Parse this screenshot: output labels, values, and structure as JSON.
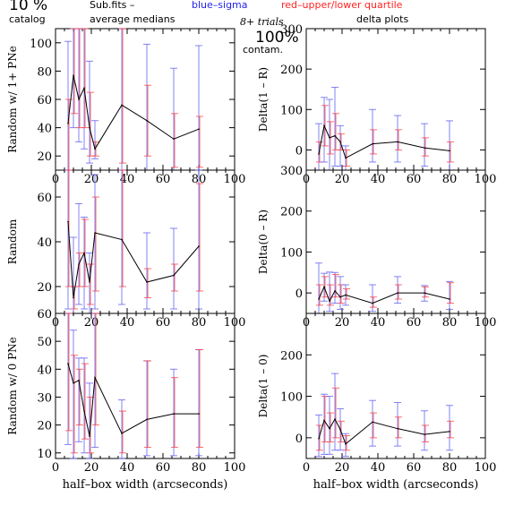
{
  "header": {
    "pct_left": "10 %",
    "catalog": "catalog",
    "subfits": "Sub.fits  –",
    "average_medians": "average medians",
    "blue_sigma": "blue–sigma",
    "red_quartile": "red–upper/lower quartile",
    "trials": "8+ trials",
    "pct_right": "100%",
    "contam": "contam.",
    "delta_plots": "delta plots"
  },
  "colors": {
    "line": "#000000",
    "sigma": "#5a5af0",
    "quartile": "#ff3b3b",
    "header_blue": "#2222ee",
    "header_red": "#ff2222"
  },
  "chart_data": [
    {
      "type": "line",
      "panel": "left-top",
      "ylabel": "Random w/ 1+ PNe",
      "xlim": [
        0,
        100
      ],
      "ylim": [
        10,
        110
      ],
      "xticks": [
        "0",
        "20",
        "40",
        "60",
        "80",
        "100"
      ],
      "yticks": [
        "20",
        "40",
        "60",
        "80",
        "100"
      ],
      "x": [
        7,
        10,
        13,
        16,
        19,
        22,
        37,
        51,
        66,
        80
      ],
      "y": [
        43,
        77,
        60,
        68,
        40,
        25,
        56,
        45,
        32,
        39
      ],
      "sigma_low": [
        2,
        40,
        30,
        25,
        15,
        18,
        10,
        5,
        0,
        0
      ],
      "sigma_high": [
        101,
        115,
        115,
        115,
        87,
        45,
        115,
        99,
        82,
        98
      ],
      "quartile_low": [
        10,
        50,
        40,
        40,
        20,
        20,
        15,
        20,
        12,
        12
      ],
      "quartile_high": [
        60,
        115,
        115,
        115,
        65,
        30,
        115,
        70,
        50,
        48
      ]
    },
    {
      "type": "line",
      "panel": "right-top",
      "ylabel": "Delta(1 – R)",
      "xlim": [
        0,
        100
      ],
      "ylim": [
        -50,
        300
      ],
      "xticks": [
        "0",
        "20",
        "40",
        "60",
        "80",
        "100"
      ],
      "yticks": [
        "0",
        "100",
        "200",
        "300"
      ],
      "x": [
        7,
        10,
        13,
        16,
        19,
        22,
        37,
        51,
        66,
        80
      ],
      "y": [
        -10,
        60,
        30,
        35,
        20,
        -20,
        15,
        20,
        5,
        -2
      ],
      "sigma_low": [
        -60,
        -30,
        -70,
        -40,
        -40,
        -60,
        -30,
        -30,
        -40,
        -50
      ],
      "sigma_high": [
        65,
        130,
        125,
        155,
        60,
        10,
        100,
        85,
        65,
        72
      ],
      "quartile_low": [
        -30,
        10,
        -10,
        0,
        0,
        -40,
        -10,
        0,
        -15,
        -30
      ],
      "quartile_high": [
        20,
        110,
        70,
        90,
        40,
        0,
        50,
        50,
        30,
        20
      ]
    },
    {
      "type": "line",
      "panel": "left-middle",
      "ylabel": "Random",
      "xlim": [
        0,
        100
      ],
      "ylim": [
        8,
        72
      ],
      "xticks": [
        "0",
        "20",
        "40",
        "60",
        "80",
        "100"
      ],
      "yticks": [
        "20",
        "40",
        "60"
      ],
      "x": [
        7,
        10,
        13,
        16,
        19,
        22,
        37,
        51,
        66,
        80
      ],
      "y": [
        49,
        15,
        30,
        35,
        22,
        44,
        41,
        22,
        25,
        38
      ],
      "sigma_low": [
        10,
        5,
        12,
        10,
        5,
        10,
        12,
        10,
        10,
        10
      ],
      "sigma_high": [
        72,
        42,
        57,
        51,
        35,
        70,
        72,
        44,
        46,
        72
      ],
      "quartile_low": [
        20,
        10,
        20,
        20,
        12,
        18,
        20,
        15,
        18,
        18
      ],
      "quartile_high": [
        72,
        20,
        35,
        50,
        30,
        60,
        72,
        28,
        30,
        66
      ]
    },
    {
      "type": "line",
      "panel": "right-middle",
      "ylabel": "Delta(0 – R)",
      "xlim": [
        0,
        100
      ],
      "ylim": [
        -50,
        300
      ],
      "xticks": [
        "0",
        "20",
        "40",
        "60",
        "80",
        "100"
      ],
      "yticks": [
        "0",
        "100",
        "200",
        "300"
      ],
      "x": [
        7,
        10,
        13,
        16,
        19,
        22,
        37,
        51,
        66,
        80
      ],
      "y": [
        -15,
        15,
        -20,
        5,
        -10,
        -5,
        -25,
        0,
        0,
        -15
      ],
      "sigma_low": [
        -50,
        -20,
        -45,
        -25,
        -40,
        -30,
        -45,
        -25,
        -20,
        -40
      ],
      "sigma_high": [
        73,
        48,
        51,
        50,
        40,
        20,
        20,
        40,
        18,
        28
      ],
      "quartile_low": [
        -30,
        -10,
        -30,
        -10,
        -25,
        -15,
        -35,
        -15,
        -10,
        -25
      ],
      "quartile_high": [
        20,
        40,
        20,
        45,
        20,
        10,
        -10,
        20,
        15,
        25
      ]
    },
    {
      "type": "line",
      "panel": "left-bottom",
      "ylabel": "Random w/ 0 PNe",
      "xlim": [
        0,
        100
      ],
      "ylim": [
        8,
        60
      ],
      "xticks": [
        "0",
        "20",
        "40",
        "60",
        "80",
        "100"
      ],
      "yticks": [
        "10",
        "20",
        "30",
        "40",
        "50",
        "60"
      ],
      "x": [
        7,
        10,
        13,
        16,
        19,
        22,
        37,
        51,
        66,
        80
      ],
      "y": [
        42,
        35,
        36,
        25,
        16,
        37,
        17,
        22,
        24,
        24
      ],
      "sigma_low": [
        13,
        5,
        14,
        10,
        8,
        12,
        8,
        9,
        9,
        9
      ],
      "sigma_high": [
        60,
        54,
        44,
        44,
        35,
        60,
        29,
        43,
        40,
        47
      ],
      "quartile_low": [
        18,
        10,
        20,
        15,
        10,
        20,
        10,
        12,
        12,
        12
      ],
      "quartile_high": [
        60,
        45,
        40,
        42,
        30,
        60,
        25,
        43,
        37,
        47
      ]
    },
    {
      "type": "line",
      "panel": "right-bottom",
      "ylabel": "Delta(1 – 0)",
      "xlabel": "half–box width (arcseconds)",
      "xlim": [
        0,
        100
      ],
      "ylim": [
        -50,
        300
      ],
      "xticks": [
        "0",
        "20",
        "40",
        "60",
        "80",
        "100"
      ],
      "yticks": [
        "0",
        "100",
        "200"
      ],
      "x": [
        7,
        10,
        13,
        16,
        19,
        22,
        37,
        51,
        66,
        80
      ],
      "y": [
        -2,
        42,
        22,
        45,
        20,
        -15,
        38,
        22,
        8,
        15
      ],
      "sigma_low": [
        -45,
        -40,
        -40,
        -30,
        -30,
        -45,
        -20,
        -20,
        -30,
        -30
      ],
      "sigma_high": [
        55,
        105,
        100,
        155,
        70,
        10,
        90,
        85,
        65,
        78
      ],
      "quartile_low": [
        -30,
        -10,
        -10,
        0,
        -10,
        -30,
        0,
        0,
        -10,
        0
      ],
      "quartile_high": [
        30,
        100,
        60,
        120,
        40,
        5,
        60,
        50,
        30,
        40
      ]
    }
  ],
  "xlabel_left": "half–box width (arcseconds)",
  "xlabel_right": "half–box width (arcseconds)"
}
